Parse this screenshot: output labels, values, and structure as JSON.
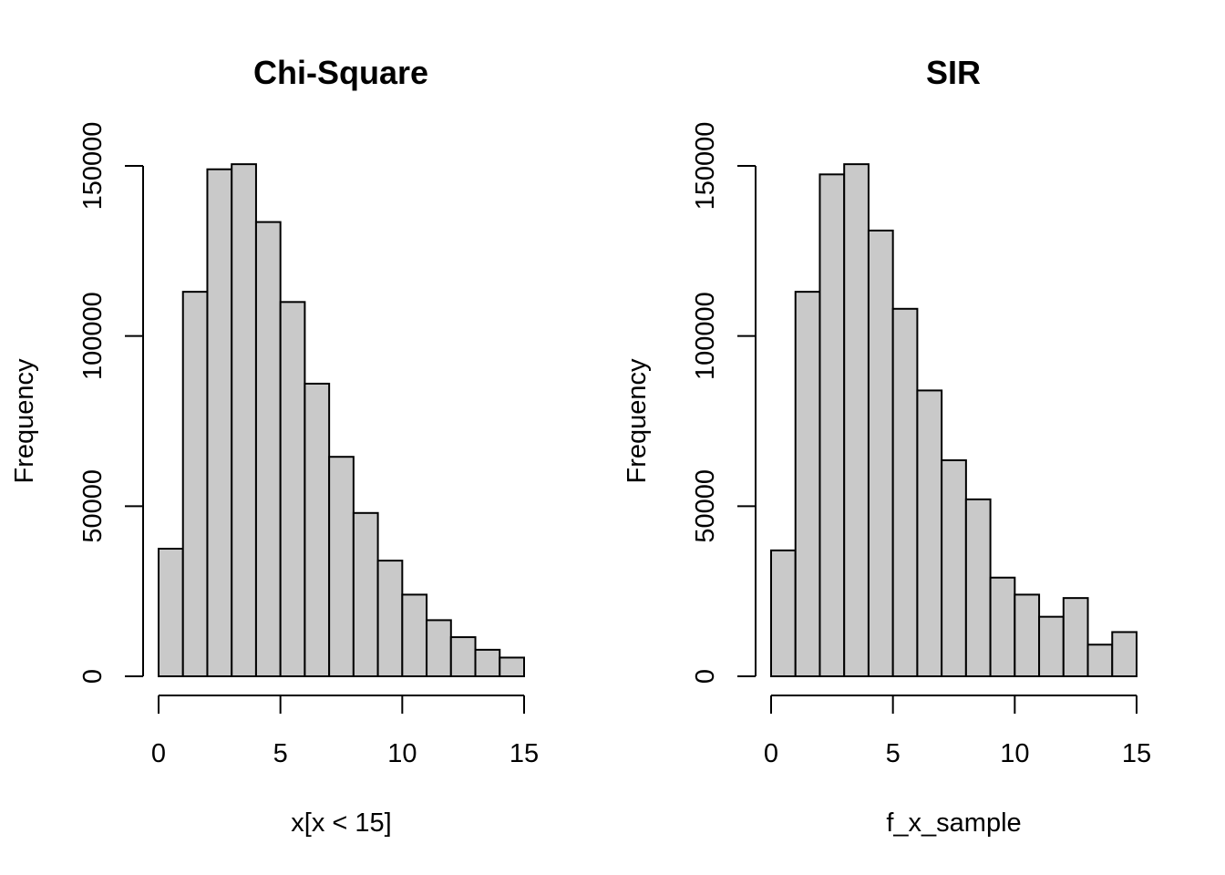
{
  "chart_data": [
    {
      "type": "bar",
      "title": "Chi-Square",
      "xlabel": "x[x < 15]",
      "ylabel": "Frequency",
      "bin_edges": [
        0,
        1,
        2,
        3,
        4,
        5,
        6,
        7,
        8,
        9,
        10,
        11,
        12,
        13,
        14,
        15
      ],
      "values": [
        37500,
        113000,
        149000,
        150500,
        133500,
        110000,
        86000,
        64500,
        48000,
        34000,
        24000,
        16500,
        11500,
        7800,
        5500
      ],
      "xlim": [
        0,
        15
      ],
      "ylim": [
        0,
        150000
      ],
      "xticks": [
        0,
        5,
        10,
        15
      ],
      "yticks": [
        0,
        50000,
        100000,
        150000
      ],
      "xtick_labels": [
        "0",
        "5",
        "10",
        "15"
      ],
      "ytick_labels": [
        "0",
        "50000",
        "100000",
        "150000"
      ],
      "bar_color": "#c9c9c9",
      "grid": false
    },
    {
      "type": "bar",
      "title": "SIR",
      "xlabel": "f_x_sample",
      "ylabel": "Frequency",
      "bin_edges": [
        0,
        1,
        2,
        3,
        4,
        5,
        6,
        7,
        8,
        9,
        10,
        11,
        12,
        13,
        14,
        15
      ],
      "values": [
        37000,
        113000,
        147500,
        150500,
        131000,
        108000,
        84000,
        63500,
        52000,
        29000,
        24000,
        17500,
        23000,
        9300,
        13000
      ],
      "xlim": [
        0,
        15
      ],
      "ylim": [
        0,
        150000
      ],
      "xticks": [
        0,
        5,
        10,
        15
      ],
      "yticks": [
        0,
        50000,
        100000,
        150000
      ],
      "xtick_labels": [
        "0",
        "5",
        "10",
        "15"
      ],
      "ytick_labels": [
        "0",
        "50000",
        "100000",
        "150000"
      ],
      "bar_color": "#c9c9c9",
      "grid": false
    }
  ]
}
